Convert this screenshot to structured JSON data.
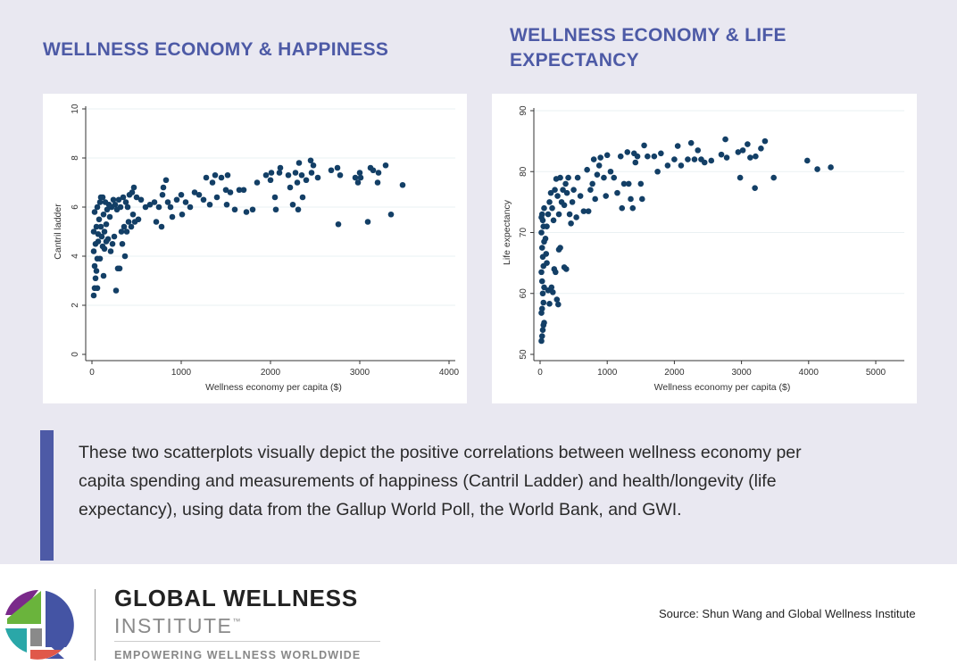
{
  "titles": {
    "left": "WELLNESS ECONOMY & HAPPINESS",
    "right": "WELLNESS ECONOMY & LIFE EXPECTANCY"
  },
  "colors": {
    "accent": "#4d5aa6",
    "marker": "#133f66",
    "background": "#e9e8f1"
  },
  "chart_data": [
    {
      "type": "scatter",
      "title": "WELLNESS ECONOMY & HAPPINESS",
      "xlabel": "Wellness economy per capita ($)",
      "ylabel": "Cantril ladder",
      "xlim": [
        0,
        4000
      ],
      "ylim": [
        0,
        10
      ],
      "xticks": [
        "0",
        "1000",
        "2000",
        "3000",
        "4000"
      ],
      "yticks": [
        "0",
        "2",
        "4",
        "6",
        "8",
        "10"
      ],
      "grid": true,
      "points": [
        [
          20,
          2.4
        ],
        [
          30,
          2.7
        ],
        [
          60,
          2.7
        ],
        [
          40,
          3.1
        ],
        [
          50,
          3.4
        ],
        [
          30,
          3.6
        ],
        [
          60,
          3.9
        ],
        [
          90,
          3.9
        ],
        [
          130,
          3.2
        ],
        [
          20,
          4.2
        ],
        [
          40,
          4.5
        ],
        [
          70,
          4.6
        ],
        [
          20,
          5.0
        ],
        [
          50,
          5.2
        ],
        [
          80,
          5.5
        ],
        [
          30,
          5.8
        ],
        [
          60,
          6.0
        ],
        [
          90,
          6.2
        ],
        [
          100,
          6.4
        ],
        [
          120,
          6.4
        ],
        [
          150,
          6.2
        ],
        [
          70,
          4.9
        ],
        [
          110,
          4.8
        ],
        [
          140,
          5.0
        ],
        [
          160,
          5.3
        ],
        [
          180,
          4.7
        ],
        [
          200,
          5.6
        ],
        [
          220,
          6.0
        ],
        [
          240,
          6.3
        ],
        [
          260,
          6.1
        ],
        [
          280,
          5.9
        ],
        [
          300,
          6.3
        ],
        [
          320,
          6.0
        ],
        [
          350,
          6.4
        ],
        [
          380,
          6.2
        ],
        [
          400,
          6.0
        ],
        [
          420,
          6.5
        ],
        [
          450,
          6.6
        ],
        [
          470,
          6.8
        ],
        [
          500,
          6.4
        ],
        [
          520,
          5.5
        ],
        [
          550,
          6.3
        ],
        [
          210,
          4.2
        ],
        [
          230,
          4.5
        ],
        [
          250,
          4.8
        ],
        [
          270,
          2.6
        ],
        [
          290,
          3.5
        ],
        [
          310,
          3.5
        ],
        [
          340,
          4.5
        ],
        [
          370,
          4.0
        ],
        [
          330,
          5.0
        ],
        [
          360,
          5.2
        ],
        [
          390,
          5.0
        ],
        [
          410,
          5.4
        ],
        [
          440,
          5.2
        ],
        [
          460,
          5.7
        ],
        [
          480,
          5.4
        ],
        [
          130,
          5.7
        ],
        [
          170,
          5.9
        ],
        [
          190,
          6.1
        ],
        [
          100,
          5.2
        ],
        [
          120,
          4.4
        ],
        [
          140,
          4.3
        ],
        [
          160,
          4.6
        ],
        [
          600,
          6.0
        ],
        [
          650,
          6.1
        ],
        [
          700,
          6.2
        ],
        [
          720,
          5.4
        ],
        [
          750,
          6.0
        ],
        [
          780,
          5.2
        ],
        [
          790,
          6.5
        ],
        [
          800,
          6.8
        ],
        [
          830,
          7.1
        ],
        [
          850,
          6.2
        ],
        [
          880,
          6.0
        ],
        [
          900,
          5.6
        ],
        [
          950,
          6.3
        ],
        [
          1000,
          6.5
        ],
        [
          1010,
          5.7
        ],
        [
          1050,
          6.2
        ],
        [
          1100,
          6.0
        ],
        [
          1150,
          6.6
        ],
        [
          1200,
          6.5
        ],
        [
          1250,
          6.3
        ],
        [
          1280,
          7.2
        ],
        [
          1320,
          6.1
        ],
        [
          1350,
          7.0
        ],
        [
          1380,
          7.3
        ],
        [
          1400,
          6.4
        ],
        [
          1450,
          7.2
        ],
        [
          1500,
          6.7
        ],
        [
          1520,
          7.3
        ],
        [
          1510,
          6.1
        ],
        [
          1550,
          6.6
        ],
        [
          1600,
          5.9
        ],
        [
          1650,
          6.7
        ],
        [
          1700,
          6.7
        ],
        [
          1730,
          5.8
        ],
        [
          1800,
          5.9
        ],
        [
          1850,
          7.0
        ],
        [
          1950,
          7.3
        ],
        [
          2000,
          7.1
        ],
        [
          2010,
          7.4
        ],
        [
          2050,
          6.4
        ],
        [
          2060,
          5.9
        ],
        [
          2100,
          7.4
        ],
        [
          2110,
          7.6
        ],
        [
          2200,
          7.3
        ],
        [
          2220,
          6.8
        ],
        [
          2250,
          6.1
        ],
        [
          2280,
          7.4
        ],
        [
          2300,
          7.0
        ],
        [
          2310,
          5.9
        ],
        [
          2320,
          7.8
        ],
        [
          2350,
          7.3
        ],
        [
          2360,
          6.4
        ],
        [
          2400,
          7.1
        ],
        [
          2450,
          7.9
        ],
        [
          2460,
          7.4
        ],
        [
          2480,
          7.7
        ],
        [
          2530,
          7.2
        ],
        [
          2680,
          7.5
        ],
        [
          2750,
          7.6
        ],
        [
          2760,
          5.3
        ],
        [
          2780,
          7.3
        ],
        [
          2950,
          7.2
        ],
        [
          2980,
          7.0
        ],
        [
          3000,
          7.4
        ],
        [
          3010,
          7.2
        ],
        [
          3090,
          5.4
        ],
        [
          3120,
          7.6
        ],
        [
          3150,
          7.5
        ],
        [
          3200,
          7.0
        ],
        [
          3210,
          7.4
        ],
        [
          3290,
          7.7
        ],
        [
          3350,
          5.7
        ],
        [
          3480,
          6.9
        ]
      ]
    },
    {
      "type": "scatter",
      "title": "WELLNESS ECONOMY & LIFE EXPECTANCY",
      "xlabel": "Wellness economy per capita ($)",
      "ylabel": "Life expectancy",
      "xlim": [
        0,
        5000
      ],
      "ylim": [
        50,
        90
      ],
      "xticks": [
        "0",
        "1000",
        "2000",
        "3000",
        "4000",
        "5000"
      ],
      "yticks": [
        "50",
        "60",
        "70",
        "80",
        "90"
      ],
      "grid": true,
      "points": [
        [
          20,
          52.2
        ],
        [
          30,
          53.0
        ],
        [
          40,
          54.0
        ],
        [
          50,
          54.8
        ],
        [
          60,
          55.2
        ],
        [
          20,
          56.8
        ],
        [
          30,
          57.5
        ],
        [
          50,
          58.5
        ],
        [
          40,
          60.0
        ],
        [
          60,
          61.0
        ],
        [
          30,
          62.0
        ],
        [
          20,
          63.5
        ],
        [
          50,
          64.5
        ],
        [
          40,
          66.0
        ],
        [
          30,
          67.5
        ],
        [
          60,
          68.5
        ],
        [
          20,
          70.0
        ],
        [
          50,
          71.0
        ],
        [
          40,
          72.0
        ],
        [
          30,
          73.0
        ],
        [
          60,
          74.0
        ],
        [
          20,
          72.5
        ],
        [
          80,
          69
        ],
        [
          90,
          66.5
        ],
        [
          100,
          65
        ],
        [
          120,
          60.5
        ],
        [
          140,
          58.3
        ],
        [
          170,
          61
        ],
        [
          190,
          60.2
        ],
        [
          210,
          64
        ],
        [
          230,
          63.5
        ],
        [
          250,
          59
        ],
        [
          270,
          58.2
        ],
        [
          280,
          67.2
        ],
        [
          300,
          67.5
        ],
        [
          360,
          64.3
        ],
        [
          390,
          64
        ],
        [
          100,
          71
        ],
        [
          120,
          73
        ],
        [
          140,
          75
        ],
        [
          160,
          76.5
        ],
        [
          180,
          74
        ],
        [
          200,
          72
        ],
        [
          220,
          77
        ],
        [
          240,
          78.8
        ],
        [
          260,
          76
        ],
        [
          280,
          73
        ],
        [
          300,
          79
        ],
        [
          320,
          75
        ],
        [
          340,
          77
        ],
        [
          360,
          74.5
        ],
        [
          380,
          78
        ],
        [
          400,
          76.5
        ],
        [
          420,
          79
        ],
        [
          440,
          73
        ],
        [
          460,
          71.5
        ],
        [
          480,
          75
        ],
        [
          500,
          77
        ],
        [
          540,
          72.5
        ],
        [
          560,
          79
        ],
        [
          600,
          76
        ],
        [
          650,
          73.5
        ],
        [
          700,
          80.3
        ],
        [
          720,
          73.5
        ],
        [
          750,
          77
        ],
        [
          780,
          78
        ],
        [
          800,
          82
        ],
        [
          820,
          75.5
        ],
        [
          850,
          79.5
        ],
        [
          880,
          81
        ],
        [
          900,
          82.3
        ],
        [
          950,
          79
        ],
        [
          980,
          76
        ],
        [
          1000,
          82.7
        ],
        [
          1050,
          80
        ],
        [
          1100,
          79
        ],
        [
          1150,
          76.5
        ],
        [
          1200,
          82.5
        ],
        [
          1220,
          74
        ],
        [
          1250,
          78
        ],
        [
          1300,
          83.2
        ],
        [
          1320,
          78
        ],
        [
          1350,
          75.5
        ],
        [
          1380,
          74
        ],
        [
          1400,
          83
        ],
        [
          1420,
          81.5
        ],
        [
          1450,
          82.5
        ],
        [
          1500,
          78
        ],
        [
          1520,
          75.5
        ],
        [
          1550,
          84.3
        ],
        [
          1600,
          82.5
        ],
        [
          1700,
          82.5
        ],
        [
          1750,
          80
        ],
        [
          1800,
          83
        ],
        [
          1900,
          81
        ],
        [
          2000,
          82
        ],
        [
          2050,
          84.2
        ],
        [
          2100,
          81
        ],
        [
          2200,
          82
        ],
        [
          2250,
          84.7
        ],
        [
          2300,
          82
        ],
        [
          2350,
          83.5
        ],
        [
          2400,
          82
        ],
        [
          2450,
          81.5
        ],
        [
          2550,
          81.8
        ],
        [
          2700,
          82.8
        ],
        [
          2760,
          85.3
        ],
        [
          2780,
          82.3
        ],
        [
          2950,
          83.2
        ],
        [
          2980,
          79
        ],
        [
          3020,
          83.5
        ],
        [
          3090,
          84.5
        ],
        [
          3130,
          82.3
        ],
        [
          3200,
          77.3
        ],
        [
          3210,
          82.5
        ],
        [
          3290,
          83.8
        ],
        [
          3350,
          85
        ],
        [
          3480,
          79
        ],
        [
          3980,
          81.8
        ],
        [
          4130,
          80.4
        ],
        [
          4330,
          80.7
        ]
      ]
    }
  ],
  "description": {
    "lines": [
      "These two scatterplots visually depict the positive correlations between wellness economy per",
      "capita spending and measurements of happiness (Cantril Ladder) and health/longevity (life",
      "expectancy), using data from the Gallup World Poll, the World Bank, and GWI."
    ]
  },
  "footer": {
    "logo_name": "GLOBAL WELLNESS",
    "logo_sub": "INSTITUTE",
    "logo_tm": "™",
    "tagline": "EMPOWERING WELLNESS WORLDWIDE",
    "source": "Source: Shun Wang and Global Wellness Institute"
  }
}
